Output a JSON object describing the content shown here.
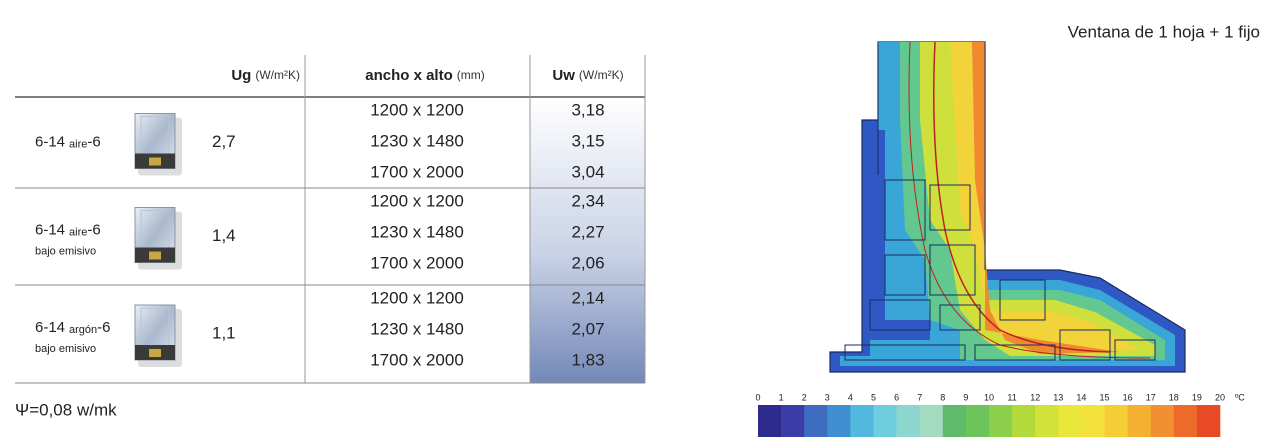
{
  "table": {
    "headers": [
      {
        "name": "Ug",
        "unit": "(W/m²K)"
      },
      {
        "name": "ancho x alto",
        "unit": "(mm)"
      },
      {
        "name": "Uw",
        "unit": "(W/m²K)"
      }
    ],
    "groups": [
      {
        "glass": "6-14",
        "gas": "aire",
        "glass_end": "-6",
        "ug": "2,7",
        "rows": [
          [
            "1200 x 1200",
            "3,18"
          ],
          [
            "1230 x 1480",
            "3,15"
          ],
          [
            "1700 x 2000",
            "3,04"
          ]
        ]
      },
      {
        "glass": "6-14",
        "gas": "aire",
        "glass_end": "-6",
        "note": "bajo emisivo",
        "ug": "1,4",
        "rows": [
          [
            "1200 x 1200",
            "2,34"
          ],
          [
            "1230 x 1480",
            "2,27"
          ],
          [
            "1700 x 2000",
            "2,06"
          ]
        ]
      },
      {
        "glass": "6-14",
        "gas": "argón",
        "glass_end": "-6",
        "note": "bajo emisivo",
        "ug": "1,1",
        "rows": [
          [
            "1200 x 1200",
            "2,14"
          ],
          [
            "1230 x 1480",
            "2,07"
          ],
          [
            "1700 x 2000",
            "1,83"
          ]
        ]
      }
    ]
  },
  "footnote": "Ψ=0,08 w/mk",
  "figure": {
    "title": "Ventana de 1 hoja + 1 fijo",
    "scale": {
      "labels": [
        "0",
        "1",
        "2",
        "3",
        "4",
        "5",
        "6",
        "7",
        "8",
        "9",
        "10",
        "11",
        "12",
        "13",
        "14",
        "15",
        "16",
        "17",
        "18",
        "19",
        "20"
      ],
      "unit": "ºC",
      "colors": [
        "#2d2a8e",
        "#3b3ca8",
        "#3d6cc0",
        "#3f8fd0",
        "#52b8de",
        "#6fcde0",
        "#8dd6cf",
        "#a3dbc0",
        "#5dbb6a",
        "#6cc45a",
        "#8ccf4a",
        "#b3da3c",
        "#d3e23a",
        "#e9e83a",
        "#f2e23a",
        "#f5cd35",
        "#f4b030",
        "#f09030",
        "#ec6a2a",
        "#e84a25"
      ]
    }
  }
}
